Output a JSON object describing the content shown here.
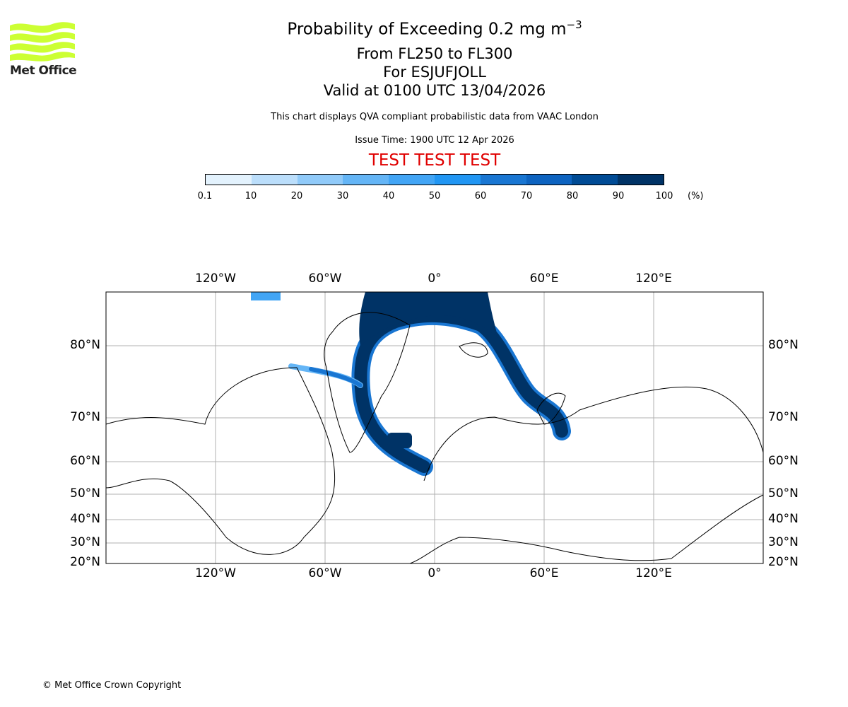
{
  "logo": {
    "text": "Met Office",
    "color": "#ccff33"
  },
  "title": {
    "main": "Probability of Exceeding 0.2 mg m",
    "main_superscript": "−3",
    "levels": "From FL250 to FL300",
    "location": "For ESJUFJOLL",
    "valid": "Valid at 0100 UTC 13/04/2026",
    "description": "This chart displays QVA compliant probabilistic data from VAAC London",
    "issue": "Issue Time: 1900 UTC 12 Apr 2026",
    "test_banner": "TEST TEST TEST"
  },
  "colorbar": {
    "ticks": [
      "0.1",
      "10",
      "20",
      "30",
      "40",
      "50",
      "60",
      "70",
      "80",
      "90",
      "100"
    ],
    "unit": "(%)",
    "colors": [
      "#e3f2fd",
      "#bbdefb",
      "#90caf9",
      "#64b5f6",
      "#42a5f5",
      "#2196f3",
      "#1976d2",
      "#0d63c0",
      "#004b95",
      "#003366"
    ]
  },
  "map": {
    "lon_labels": [
      "120°W",
      "60°W",
      "0°",
      "60°E",
      "120°E"
    ],
    "lat_labels": [
      "80°N",
      "70°N",
      "60°N",
      "50°N",
      "40°N",
      "30°N",
      "20°N"
    ],
    "plume_color": "#003366"
  },
  "footer": {
    "copyright": "© Met Office Crown Copyright"
  }
}
